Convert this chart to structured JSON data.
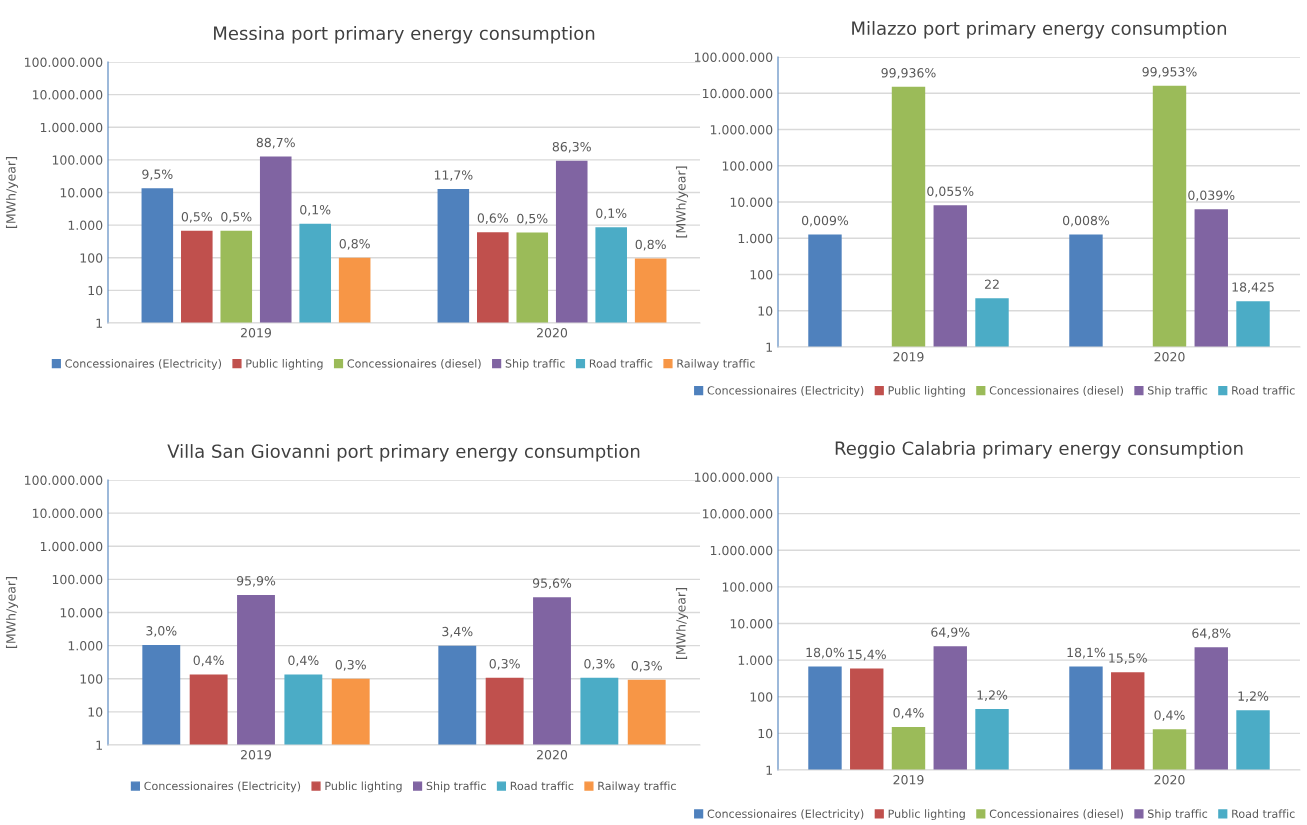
{
  "chart_data": [
    {
      "type": "bar",
      "title": "Messina port primary energy consumption",
      "ylabel": "[MWh/year]",
      "categories": [
        "2019",
        "2020"
      ],
      "log": true,
      "grid": "y",
      "legend": "bottom",
      "ylim": [
        1,
        100000000
      ],
      "yticks": [
        1,
        10,
        100,
        {
          "value": 1000,
          "label": "1.000"
        },
        {
          "value": 10000,
          "label": "10.000"
        },
        {
          "value": 100000,
          "label": "100.000"
        },
        {
          "value": 1000000,
          "label": "1.000.000"
        },
        {
          "value": 10000000,
          "label": "10.000.000"
        },
        {
          "value": 100000000,
          "label": "100.000.000"
        }
      ],
      "series": [
        {
          "name": "Concessionaires (Electricity)",
          "color": "#4f81bd",
          "values": [
            13500,
            12700
          ]
        },
        {
          "name": "Public lighting",
          "color": "#c0504d",
          "values": [
            670,
            610
          ]
        },
        {
          "name": "Concessionaires (diesel)",
          "color": "#9bbb59",
          "values": [
            670,
            590
          ]
        },
        {
          "name": "Ship traffic",
          "color": "#8064a2",
          "values": [
            126000,
            94000
          ]
        },
        {
          "name": "Road traffic",
          "color": "#4bacc6",
          "values": [
            1100,
            860
          ]
        },
        {
          "name": "Railway traffic",
          "color": "#f79646",
          "values": [
            100,
            95
          ]
        }
      ],
      "annotations": [
        "9,5%",
        "11,7%",
        "0,5%",
        "0,6%",
        "0,5%",
        "0,5%",
        "88,7%",
        "86,3%",
        "0,1%",
        "0,1%",
        "0,8%",
        "0,8%"
      ]
    },
    {
      "type": "bar",
      "title": "Milazzo port primary energy consumption",
      "ylabel": "[MWh/year]",
      "categories": [
        "2019",
        "2020"
      ],
      "log": true,
      "grid": "y",
      "legend": "bottom",
      "ylim": [
        1,
        100000000
      ],
      "yticks": [
        1,
        10,
        100,
        {
          "value": 1000,
          "label": "1.000"
        },
        {
          "value": 10000,
          "label": "10.000"
        },
        {
          "value": 100000,
          "label": "100.000"
        },
        {
          "value": 1000000,
          "label": "1.000.000"
        },
        {
          "value": 10000000,
          "label": "10.000.000"
        },
        {
          "value": 100000000,
          "label": "100.000.000"
        }
      ],
      "series": [
        {
          "name": "Concessionaires (Electricity)",
          "color": "#4f81bd",
          "values": [
            1260,
            1260
          ]
        },
        {
          "name": "Public lighting",
          "color": "#c0504d",
          "values": [
            null,
            null
          ]
        },
        {
          "name": "Concessionaires (diesel)",
          "color": "#9bbb59",
          "values": [
            15000000,
            16000000
          ]
        },
        {
          "name": "Ship traffic",
          "color": "#8064a2",
          "values": [
            8100,
            6300
          ]
        },
        {
          "name": "Road traffic",
          "color": "#4bacc6",
          "values": [
            22,
            18.425
          ],
          "value_labels": [
            "22",
            "18,425"
          ]
        }
      ],
      "annotations": [
        "0,009%",
        "0,008%",
        "99,936%",
        "99,953%",
        "0,055%",
        "0,039%"
      ]
    },
    {
      "type": "bar",
      "title": "Villa San Giovanni port primary energy consumption",
      "ylabel": "[MWh/year]",
      "categories": [
        "2019",
        "2020"
      ],
      "log": true,
      "grid": "y",
      "legend": "bottom",
      "ylim": [
        1,
        100000000
      ],
      "yticks": [
        1,
        10,
        100,
        {
          "value": 1000,
          "label": "1.000"
        },
        {
          "value": 10000,
          "label": "10.000"
        },
        {
          "value": 100000,
          "label": "100.000"
        },
        {
          "value": 1000000,
          "label": "1.000.000"
        },
        {
          "value": 10000000,
          "label": "10.000.000"
        },
        {
          "value": 100000000,
          "label": "100.000.000"
        }
      ],
      "series": [
        {
          "name": "Concessionaires (Electricity)",
          "color": "#4f81bd",
          "values": [
            1050,
            1000
          ]
        },
        {
          "name": "Public lighting",
          "color": "#c0504d",
          "values": [
            135,
            107
          ]
        },
        {
          "name": "Ship traffic",
          "color": "#8064a2",
          "values": [
            34000,
            29000
          ]
        },
        {
          "name": "Road traffic",
          "color": "#4bacc6",
          "values": [
            135,
            107
          ]
        },
        {
          "name": "Railway traffic",
          "color": "#f79646",
          "values": [
            100,
            93
          ]
        }
      ],
      "annotations": [
        "3,0%",
        "3,4%",
        "0,4%",
        "0,3%",
        "95,9%",
        "95,6%",
        "0,4%",
        "0,3%",
        "0,3%",
        "0,3%"
      ]
    },
    {
      "type": "bar",
      "title": "Reggio Calabria primary energy consumption",
      "ylabel": "[MWh/year]",
      "categories": [
        "2019",
        "2020"
      ],
      "log": true,
      "grid": "y",
      "legend": "bottom",
      "ylim": [
        1,
        100000000
      ],
      "yticks": [
        1,
        10,
        100,
        {
          "value": 1000,
          "label": "1.000"
        },
        {
          "value": 10000,
          "label": "10.000"
        },
        {
          "value": 100000,
          "label": "100.000"
        },
        {
          "value": 1000000,
          "label": "1.000.000"
        },
        {
          "value": 10000000,
          "label": "10.000.000"
        },
        {
          "value": 100000000,
          "label": "100.000.000"
        }
      ],
      "series": [
        {
          "name": "Concessionaires (Electricity)",
          "color": "#4f81bd",
          "values": [
            670,
            670
          ]
        },
        {
          "name": "Public lighting",
          "color": "#c0504d",
          "values": [
            590,
            470
          ]
        },
        {
          "name": "Concessionaires (diesel)",
          "color": "#9bbb59",
          "values": [
            15,
            13
          ]
        },
        {
          "name": "Ship traffic",
          "color": "#8064a2",
          "values": [
            2400,
            2250
          ]
        },
        {
          "name": "Road traffic",
          "color": "#4bacc6",
          "values": [
            46,
            43
          ]
        }
      ],
      "annotations": [
        "18,0%",
        "18,1%",
        "15,4%",
        "15,5%",
        "0,4%",
        "0,4%",
        "64,9%",
        "64,8%",
        "1,2%",
        "1,2%"
      ]
    }
  ]
}
